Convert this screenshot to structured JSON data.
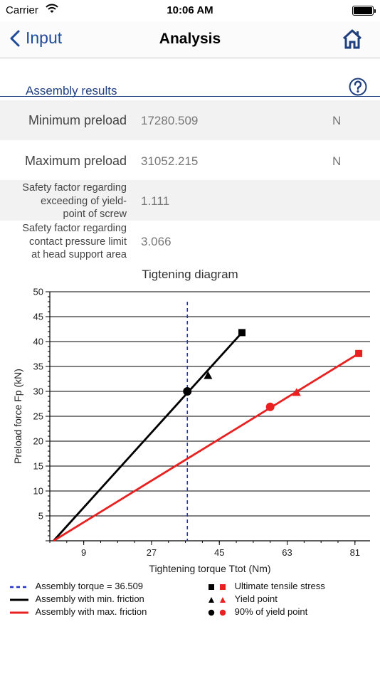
{
  "status_bar": {
    "carrier": "Carrier",
    "time": "10:06 AM"
  },
  "nav": {
    "back_label": "Input",
    "title": "Analysis"
  },
  "section": {
    "title": "Assembly results"
  },
  "results": [
    {
      "label": "Minimum preload",
      "value": "17280.509",
      "unit": "N"
    },
    {
      "label": "Maximum preload",
      "value": "31052.215",
      "unit": "N"
    },
    {
      "label_lines": [
        "Safety factor regarding",
        "exceeding of yield-",
        "point of screw"
      ],
      "value": "1.111"
    },
    {
      "label_lines": [
        "Safety factor regarding",
        "contact pressure limit",
        "at head support area"
      ],
      "value": "3.066"
    }
  ],
  "chart_data": {
    "type": "line",
    "title": "Tigtening diagram",
    "xlabel": "Tightening torque Ttot (Nm)",
    "ylabel": "Preload force Fp (kN)",
    "xlim": [
      0,
      85
    ],
    "ylim": [
      0,
      50
    ],
    "x_ticks": [
      9,
      27,
      45,
      63,
      81
    ],
    "y_ticks": [
      5,
      10,
      15,
      20,
      25,
      30,
      35,
      40,
      45,
      50
    ],
    "grid": "horizontal",
    "assembly_torque": 36.509,
    "series": [
      {
        "name": "Assembly with min. friction",
        "color": "#000000",
        "line": [
          [
            1,
            0
          ],
          [
            51,
            41.8
          ]
        ],
        "ultimate_tensile_stress": [
          51,
          41.8
        ],
        "yield_point": [
          42,
          33.2
        ],
        "yield_90": [
          36.5,
          30
        ]
      },
      {
        "name": "Assembly with max. friction",
        "color": "#e82020",
        "line": [
          [
            1,
            0
          ],
          [
            82,
            37.6
          ]
        ],
        "ultimate_tensile_stress": [
          82,
          37.6
        ],
        "yield_point": [
          65.5,
          29.8
        ],
        "yield_90": [
          58.5,
          26.9
        ]
      }
    ],
    "legend": {
      "assembly_torque": "Assembly torque = 36.509",
      "min_friction": "Assembly with min. friction",
      "max_friction": "Assembly with max. friction",
      "ultimate": "Ultimate tensile stress",
      "yield": "Yield point",
      "yield_90": "90% of yield point"
    },
    "colors": {
      "dashed": "#2233cc"
    }
  }
}
